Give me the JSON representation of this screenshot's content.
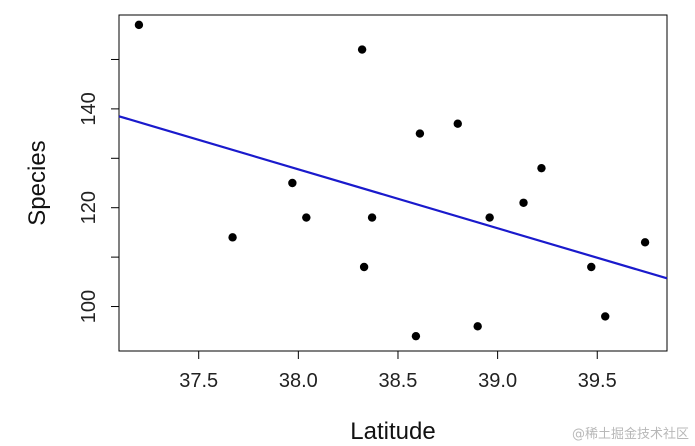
{
  "chart_data": {
    "type": "scatter",
    "title": "",
    "xlabel": "Latitude",
    "ylabel": "Species",
    "xlim": [
      37.1,
      39.85
    ],
    "ylim": [
      91,
      159
    ],
    "x_ticks": [
      37.5,
      38.0,
      38.5,
      39.0,
      39.5
    ],
    "x_tick_labels": [
      "37.5",
      "38.0",
      "38.5",
      "39.0",
      "39.5"
    ],
    "y_ticks": [
      100,
      120,
      140
    ],
    "y_tick_labels": [
      "100",
      "120",
      "140"
    ],
    "grid": false,
    "points": [
      {
        "x": 37.2,
        "y": 157
      },
      {
        "x": 37.67,
        "y": 114
      },
      {
        "x": 37.97,
        "y": 125
      },
      {
        "x": 38.04,
        "y": 118
      },
      {
        "x": 38.32,
        "y": 152
      },
      {
        "x": 38.33,
        "y": 108
      },
      {
        "x": 38.37,
        "y": 118
      },
      {
        "x": 38.59,
        "y": 94
      },
      {
        "x": 38.61,
        "y": 135
      },
      {
        "x": 38.8,
        "y": 137
      },
      {
        "x": 38.9,
        "y": 96
      },
      {
        "x": 38.96,
        "y": 118
      },
      {
        "x": 39.13,
        "y": 121
      },
      {
        "x": 39.22,
        "y": 128
      },
      {
        "x": 39.47,
        "y": 108
      },
      {
        "x": 39.54,
        "y": 98
      },
      {
        "x": 39.74,
        "y": 113
      }
    ],
    "regression_line": {
      "x": [
        37.1,
        39.85
      ],
      "y": [
        138.5,
        105.7
      ]
    },
    "colors": {
      "points": "#000000",
      "line": "#1a1acc"
    }
  },
  "watermark": "@稀土掘金技术社区"
}
